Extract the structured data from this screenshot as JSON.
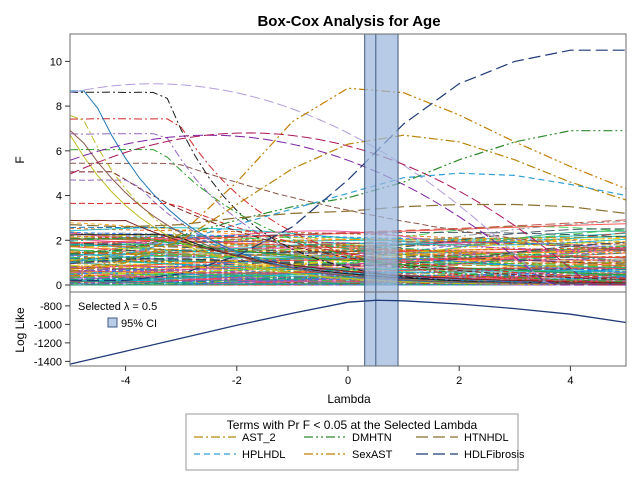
{
  "chart_data": [
    {
      "type": "line",
      "title": "Box-Cox Analysis for Age",
      "ylabel": "F",
      "xlim": [
        -5,
        5
      ],
      "ylim": [
        0,
        11
      ],
      "x_ticks": [
        -4,
        -2,
        0,
        2,
        4
      ],
      "y_ticks": [
        0,
        2,
        4,
        6,
        8,
        10
      ],
      "selected_lambda": 0.5,
      "ci": [
        0.3,
        0.9
      ],
      "highlighted_series": [
        {
          "name": "AST_2",
          "color": "#b8860b",
          "dash": "dashdot",
          "x": [
            -5,
            -4,
            -3,
            -2,
            -1,
            0,
            1,
            2,
            3,
            4,
            5
          ],
          "y": [
            0.6,
            1.0,
            2.0,
            3.6,
            5.2,
            6.3,
            6.7,
            6.4,
            5.6,
            4.6,
            3.8
          ]
        },
        {
          "name": "DMHTN",
          "color": "#2e8b2e",
          "dash": "dashdotdot",
          "x": [
            -5,
            -4,
            -3,
            -2,
            -1,
            0,
            1,
            2,
            3,
            4,
            5
          ],
          "y": [
            1.4,
            1.6,
            2.2,
            2.9,
            3.5,
            3.9,
            4.6,
            5.6,
            6.4,
            6.9,
            6.9
          ]
        },
        {
          "name": "HTNHDL",
          "color": "#8b6f2e",
          "dash": "longdash",
          "x": [
            -5,
            -4,
            -3,
            -2,
            -1,
            0,
            1,
            2,
            3,
            4,
            5
          ],
          "y": [
            2.7,
            2.6,
            2.7,
            3.0,
            3.2,
            3.3,
            3.5,
            3.6,
            3.6,
            3.5,
            3.2
          ]
        },
        {
          "name": "HPLHDL",
          "color": "#2f9fd6",
          "dash": "dash",
          "x": [
            -5,
            -4,
            -3,
            -2,
            -1,
            0,
            1,
            2,
            3,
            4,
            5
          ],
          "y": [
            1.0,
            1.4,
            2.0,
            2.7,
            3.4,
            4.1,
            4.8,
            5.0,
            4.9,
            4.5,
            4.0
          ]
        },
        {
          "name": "SexAST",
          "color": "#c07d00",
          "dash": "dashdotdot",
          "x": [
            -5,
            -4,
            -3,
            -2,
            -1,
            0,
            1,
            2,
            3,
            4,
            5
          ],
          "y": [
            0.7,
            1.1,
            2.3,
            4.6,
            7.3,
            8.8,
            8.6,
            7.6,
            6.4,
            5.3,
            4.3
          ]
        },
        {
          "name": "HDLFibrosis",
          "color": "#1f3a78",
          "dash": "longdash",
          "x": [
            -5,
            -4,
            -3,
            -2,
            -1,
            0,
            1,
            2,
            3,
            4,
            5
          ],
          "y": [
            0.2,
            0.2,
            0.5,
            1.3,
            2.6,
            4.7,
            7.2,
            9.0,
            10.0,
            10.5,
            10.5
          ]
        }
      ]
    },
    {
      "type": "line",
      "ylabel": "Log Like",
      "xlabel": "Lambda",
      "xlim": [
        -5,
        5
      ],
      "ylim": [
        -1450,
        -650
      ],
      "x_ticks": [
        -4,
        -2,
        0,
        2,
        4
      ],
      "x_tick_labels": [
        "-4",
        "-2",
        "0",
        "2",
        "4"
      ],
      "y_ticks": [
        -1400,
        -1200,
        -1000,
        -800
      ],
      "y_tick_labels": [
        "-1400",
        "-1200",
        "-1000",
        "-800"
      ],
      "annotation": "Selected λ = 0.5",
      "ci_label": "95% CI",
      "series": [
        {
          "color": "#1f3a78",
          "x": [
            -5,
            -4,
            -3,
            -2,
            -1,
            0,
            0.5,
            1,
            2,
            3,
            4,
            5
          ],
          "y": [
            -1430,
            -1290,
            -1150,
            -1010,
            -880,
            -760,
            -740,
            -745,
            -780,
            -830,
            -890,
            -980
          ]
        }
      ]
    }
  ],
  "legend": {
    "title": "Terms with Pr F < 0.05 at the Selected Lambda",
    "items": [
      "AST_2",
      "DMHTN",
      "HTNHDL",
      "HPLHDL",
      "SexAST",
      "HDLFibrosis"
    ]
  }
}
